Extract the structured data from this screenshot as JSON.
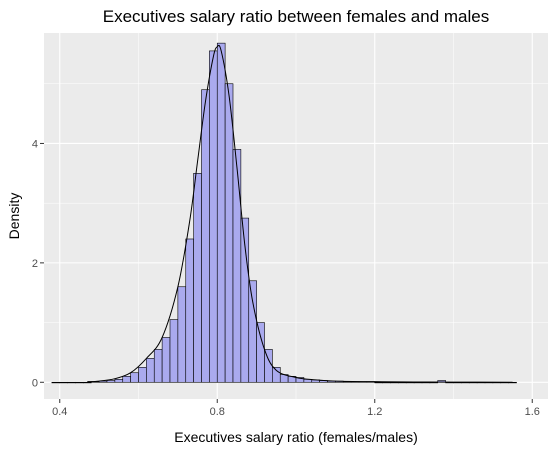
{
  "chart_data": {
    "type": "bar",
    "subtype": "histogram-with-density",
    "title": "Executives salary ratio between females and males",
    "xlabel": "Executives salary ratio (females/males)",
    "ylabel": "Density",
    "xlim": [
      0.36,
      1.64
    ],
    "ylim": [
      -0.28,
      5.85
    ],
    "x_ticks": [
      0.4,
      0.8,
      1.2,
      1.6
    ],
    "x_tick_labels": [
      "0.4",
      "0.8",
      "1.2",
      "1.6"
    ],
    "y_ticks": [
      0,
      2,
      4
    ],
    "y_tick_labels": [
      "0",
      "2",
      "4"
    ],
    "bin_width": 0.02,
    "bins_x_start": [
      0.38,
      0.4,
      0.42,
      0.44,
      0.46,
      0.48,
      0.5,
      0.52,
      0.54,
      0.56,
      0.58,
      0.6,
      0.62,
      0.64,
      0.66,
      0.68,
      0.7,
      0.72,
      0.74,
      0.76,
      0.78,
      0.8,
      0.82,
      0.84,
      0.86,
      0.88,
      0.9,
      0.92,
      0.94,
      0.96,
      0.98,
      1.0,
      1.02,
      1.04,
      1.06,
      1.08,
      1.1,
      1.12,
      1.14,
      1.16,
      1.18,
      1.2,
      1.22,
      1.24,
      1.26,
      1.28,
      1.3,
      1.32,
      1.34,
      1.36,
      1.38,
      1.4,
      1.42,
      1.44,
      1.46,
      1.48,
      1.5,
      1.52,
      1.54
    ],
    "density_values": [
      0,
      0,
      0,
      0,
      0,
      0.01,
      0.02,
      0.03,
      0.05,
      0.1,
      0.16,
      0.25,
      0.4,
      0.55,
      0.75,
      1.05,
      1.6,
      2.4,
      3.5,
      4.9,
      5.55,
      5.68,
      5.0,
      3.9,
      2.75,
      1.7,
      1.0,
      0.55,
      0.25,
      0.13,
      0.1,
      0.08,
      0.05,
      0.04,
      0.03,
      0.02,
      0.02,
      0.01,
      0.01,
      0.01,
      0.01,
      0,
      0,
      0,
      0,
      0,
      0,
      0,
      0,
      0.03,
      0,
      0,
      0,
      0,
      0,
      0,
      0,
      0,
      0
    ],
    "density_curve": {
      "x": [
        0.47,
        0.5,
        0.54,
        0.58,
        0.62,
        0.66,
        0.7,
        0.73,
        0.75,
        0.77,
        0.79,
        0.8,
        0.81,
        0.83,
        0.85,
        0.87,
        0.89,
        0.92,
        0.95,
        1.0,
        1.05,
        1.1,
        1.2,
        1.3,
        1.4,
        1.55
      ],
      "y": [
        0.01,
        0.02,
        0.06,
        0.16,
        0.4,
        0.75,
        1.6,
        2.7,
        3.7,
        4.7,
        5.45,
        5.62,
        5.55,
        4.8,
        3.6,
        2.3,
        1.35,
        0.55,
        0.2,
        0.08,
        0.04,
        0.02,
        0.01,
        0.005,
        0.003,
        0
      ]
    },
    "bar_fill": "#aaaaee",
    "bar_stroke": "#000000",
    "line_color": "#000000",
    "panel_background": "#ebebeb",
    "grid": true,
    "legend": "none"
  }
}
